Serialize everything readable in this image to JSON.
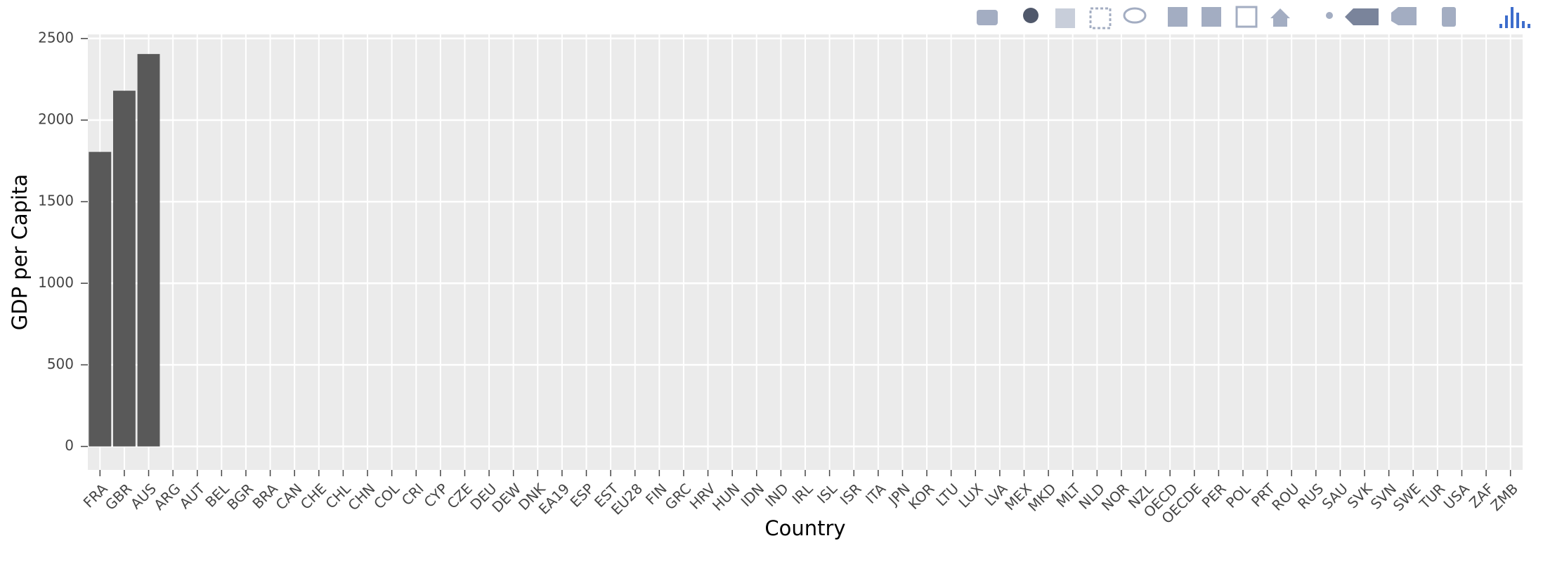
{
  "chart_data": {
    "type": "bar",
    "x_label": "Country",
    "y_label": "GDP per Capita",
    "categories": [
      "FRA",
      "GBR",
      "AUS",
      "ARG",
      "AUT",
      "BEL",
      "BGR",
      "BRA",
      "CAN",
      "CHE",
      "CHL",
      "CHN",
      "COL",
      "CRI",
      "CYP",
      "CZE",
      "DEU",
      "DEW",
      "DNK",
      "EA19",
      "ESP",
      "EST",
      "EU28",
      "FIN",
      "GRC",
      "HRV",
      "HUN",
      "IDN",
      "IND",
      "IRL",
      "ISL",
      "ISR",
      "ITA",
      "JPN",
      "KOR",
      "LTU",
      "LUX",
      "LVA",
      "MEX",
      "MKD",
      "MLT",
      "NLD",
      "NOR",
      "NZL",
      "OECD",
      "OECDE",
      "PER",
      "POL",
      "PRT",
      "ROU",
      "RUS",
      "SAU",
      "SVK",
      "SVN",
      "SWE",
      "TUR",
      "USA",
      "ZAF",
      "ZMB"
    ],
    "values": [
      1805,
      2180,
      2405,
      null,
      null,
      null,
      null,
      null,
      null,
      null,
      null,
      null,
      null,
      null,
      null,
      null,
      null,
      null,
      null,
      null,
      null,
      null,
      null,
      null,
      null,
      null,
      null,
      null,
      null,
      null,
      null,
      null,
      null,
      null,
      null,
      null,
      null,
      null,
      null,
      null,
      null,
      null,
      null,
      null,
      null,
      null,
      null,
      null,
      null,
      null,
      null,
      null,
      null,
      null,
      null,
      null,
      null,
      null,
      null
    ],
    "color": "#595959",
    "ylim": [
      -144,
      2525
    ],
    "yticks": [
      0,
      500,
      1000,
      1500,
      2000,
      2500
    ],
    "grid": true
  }
}
